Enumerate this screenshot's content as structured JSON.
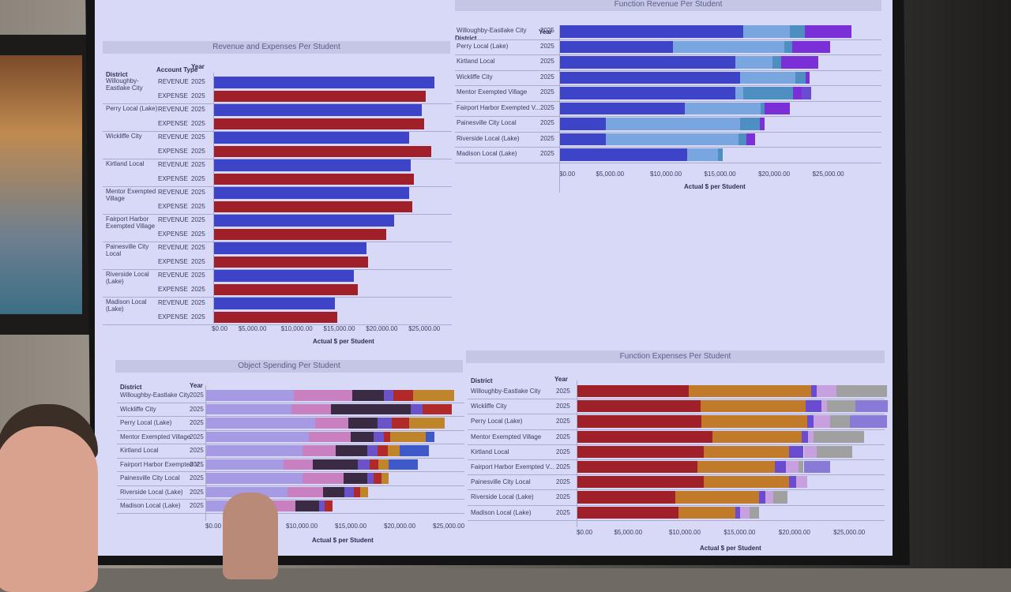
{
  "panels": {
    "rev_exp": {
      "title": "Revenue and Expenses Per Student",
      "headers": {
        "district": "District",
        "account_type": "Account Type",
        "year": "Year"
      },
      "axis_label": "Actual $ per Student",
      "ticks": [
        "$0.00",
        "$5,000.00",
        "$10,000.00",
        "$15,000.00",
        "$20,000.00",
        "$25,000.00"
      ],
      "rows": [
        {
          "district": "Willoughby-Eastlake City",
          "type": "REVENUE",
          "year": "2025",
          "value": 26000
        },
        {
          "district": "",
          "type": "EXPENSE",
          "year": "2025",
          "value": 25000
        },
        {
          "district": "Perry Local (Lake)",
          "type": "REVENUE",
          "year": "2025",
          "value": 24500
        },
        {
          "district": "",
          "type": "EXPENSE",
          "year": "2025",
          "value": 24800
        },
        {
          "district": "Wickliffe City",
          "type": "REVENUE",
          "year": "2025",
          "value": 23000
        },
        {
          "district": "",
          "type": "EXPENSE",
          "year": "2025",
          "value": 25600
        },
        {
          "district": "Kirtland Local",
          "type": "REVENUE",
          "year": "2025",
          "value": 23200
        },
        {
          "district": "",
          "type": "EXPENSE",
          "year": "2025",
          "value": 23600
        },
        {
          "district": "Mentor Exempted Village",
          "type": "REVENUE",
          "year": "2025",
          "value": 23000
        },
        {
          "district": "",
          "type": "EXPENSE",
          "year": "2025",
          "value": 23400
        },
        {
          "district": "Fairport Harbor Exempted Village",
          "type": "REVENUE",
          "year": "2025",
          "value": 21300
        },
        {
          "district": "",
          "type": "EXPENSE",
          "year": "2025",
          "value": 20300
        },
        {
          "district": "Painesville City Local",
          "type": "REVENUE",
          "year": "2025",
          "value": 18000
        },
        {
          "district": "",
          "type": "EXPENSE",
          "year": "2025",
          "value": 18200
        },
        {
          "district": "Riverside Local (Lake)",
          "type": "REVENUE",
          "year": "2025",
          "value": 16500
        },
        {
          "district": "",
          "type": "EXPENSE",
          "year": "2025",
          "value": 17000
        },
        {
          "district": "Madison Local (Lake)",
          "type": "REVENUE",
          "year": "2025",
          "value": 14300
        },
        {
          "district": "",
          "type": "EXPENSE",
          "year": "2025",
          "value": 14600
        }
      ]
    },
    "func_rev": {
      "title": "Function Revenue Per Student",
      "headers": {
        "district": "District",
        "year": "Year"
      },
      "axis_label": "Actual $ per Student",
      "ticks": [
        "$0.00",
        "$5,000.00",
        "$10,000.00",
        "$15,000.00",
        "$20,000.00",
        "$25,000.00"
      ],
      "rows": [
        {
          "district": "Willoughby-Eastlake City",
          "year": "2025",
          "segments": [
            17000,
            4300,
            1400,
            4300
          ]
        },
        {
          "district": "Perry Local (Lake)",
          "year": "2025",
          "segments": [
            10500,
            10300,
            700,
            3500
          ]
        },
        {
          "district": "Kirtland Local",
          "year": "2025",
          "segments": [
            16300,
            3400,
            800,
            3400
          ]
        },
        {
          "district": "Wickliffe City",
          "year": "2025",
          "segments": [
            16700,
            5100,
            1000,
            300
          ]
        },
        {
          "district": "Mentor Exempted Village",
          "year": "2025",
          "segments": [
            16300,
            700,
            4600,
            800,
            900
          ]
        },
        {
          "district": "Fairport Harbor Exempted Village",
          "year": "2025",
          "segments": [
            11600,
            7000,
            400,
            2300
          ]
        },
        {
          "district": "Painesville City Local",
          "year": "2025",
          "segments": [
            4300,
            12400,
            1800,
            500
          ]
        },
        {
          "district": "Riverside Local (Lake)",
          "year": "2025",
          "segments": [
            4300,
            12300,
            700,
            800
          ]
        },
        {
          "district": "Madison Local (Lake)",
          "year": "2025",
          "segments": [
            11800,
            2900,
            400
          ]
        }
      ]
    },
    "obj_spend": {
      "title": "Object Spending Per Student",
      "headers": {
        "district": "District",
        "year": "Year"
      },
      "axis_label": "Actual $ per Student",
      "ticks": [
        "$0.00",
        "$5,000.00",
        "$10,000.00",
        "$15,000.00",
        "$20,000.00",
        "$25,000.00"
      ],
      "rows": [
        {
          "district": "Willoughby-Eastlake City",
          "year": "2025",
          "segments": [
            9000,
            6000,
            3200,
            1000,
            2000,
            4200
          ]
        },
        {
          "district": "Wickliffe City",
          "year": "2025",
          "segments": [
            8800,
            4000,
            8200,
            1200,
            3000
          ]
        },
        {
          "district": "Perry Local (Lake)",
          "year": "2025",
          "segments": [
            11200,
            3400,
            3000,
            1400,
            1800,
            3600
          ]
        },
        {
          "district": "Mentor Exempted Village",
          "year": "2025",
          "segments": [
            10600,
            4200,
            2400,
            1000,
            700,
            3600,
            900
          ]
        },
        {
          "district": "Kirtland Local",
          "year": "2025",
          "segments": [
            9900,
            3400,
            3200,
            1100,
            1000,
            1200,
            3000
          ]
        },
        {
          "district": "Fairport Harbor Exempted Village",
          "year": "2025",
          "segments": [
            8000,
            3000,
            4600,
            1200,
            900,
            1000,
            3000
          ]
        },
        {
          "district": "Painesville City Local",
          "year": "2025",
          "segments": [
            9900,
            4200,
            2400,
            700,
            800,
            700
          ]
        },
        {
          "district": "Riverside Local (Lake)",
          "year": "2025",
          "segments": [
            8400,
            3600,
            2200,
            1000,
            600,
            800
          ]
        },
        {
          "district": "Madison Local (Lake)",
          "year": "2025",
          "segments": [
            6200,
            3000,
            2400,
            600,
            800
          ]
        }
      ]
    },
    "func_exp": {
      "title": "Function Expenses Per Student",
      "headers": {
        "district": "District",
        "year": "Year"
      },
      "axis_label": "Actual $ per Student",
      "ticks": [
        "$0.00",
        "$5,000.00",
        "$10,000.00",
        "$15,000.00",
        "$20,000.00",
        "$25,000.00"
      ],
      "rows": [
        {
          "district": "Willoughby-Eastlake City",
          "year": "2025",
          "segments": [
            10200,
            11200,
            500,
            1800,
            4600
          ]
        },
        {
          "district": "Wickliffe City",
          "year": "2025",
          "segments": [
            11300,
            9600,
            1400,
            500,
            2600,
            3000
          ]
        },
        {
          "district": "Perry Local (Lake)",
          "year": "2025",
          "segments": [
            11400,
            9600,
            600,
            1500,
            1800,
            3400
          ]
        },
        {
          "district": "Mentor Exempted Village",
          "year": "2025",
          "segments": [
            12400,
            8100,
            600,
            500,
            4600
          ]
        },
        {
          "district": "Kirtland Local",
          "year": "2025",
          "segments": [
            11600,
            7800,
            1300,
            1200,
            3200
          ]
        },
        {
          "district": "Fairport Harbor Exempted Village",
          "year": "2025",
          "segments": [
            11000,
            7100,
            1000,
            1100,
            500,
            2400
          ]
        },
        {
          "district": "Painesville City Local",
          "year": "2025",
          "segments": [
            11600,
            7800,
            600,
            1000
          ]
        },
        {
          "district": "Riverside Local (Lake)",
          "year": "2025",
          "segments": [
            9000,
            7600,
            600,
            700,
            1300
          ]
        },
        {
          "district": "Madison Local (Lake)",
          "year": "2025",
          "segments": [
            9300,
            5200,
            400,
            900,
            800
          ]
        }
      ]
    }
  },
  "colors": {
    "revenue": "#3d44c8",
    "expense": "#a0202a",
    "func_rev": [
      "#3d44c8",
      "#7aa6e0",
      "#4c8fc0",
      "#7b2fd6",
      "#6a4cd0"
    ],
    "obj": [
      "#a79ae4",
      "#c980c0",
      "#3a2a44",
      "#6a52c8",
      "#b02a2a",
      "#c0842a",
      "#3d5ac8"
    ],
    "func_exp": [
      "#a0202a",
      "#c07a2a",
      "#6a4cd0",
      "#c8a0e0",
      "#a0a0a0",
      "#8a7ad8"
    ]
  }
}
